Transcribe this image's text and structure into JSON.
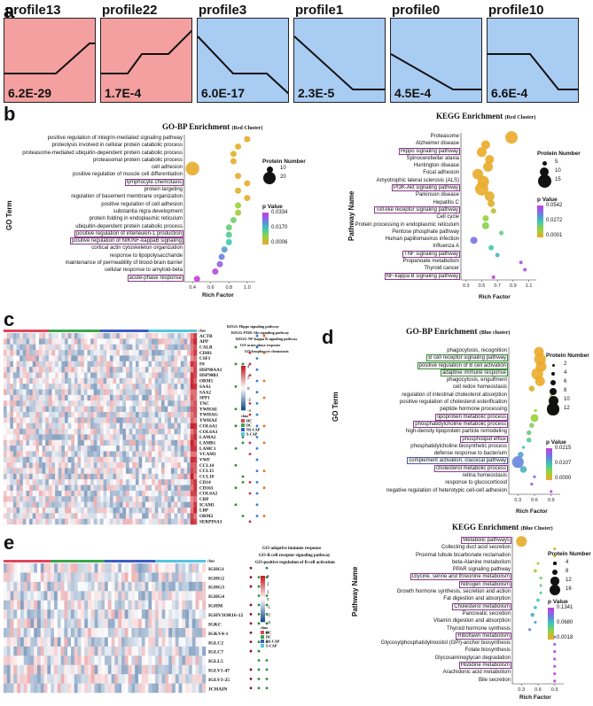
{
  "panel_labels": {
    "a": "a",
    "b": "b",
    "c": "c",
    "d": "d",
    "e": "e"
  },
  "profiles": [
    {
      "name": "profile13",
      "pvalue": "6.2E-29",
      "color": "#f4a0a0",
      "shape": "rise_late"
    },
    {
      "name": "profile22",
      "pvalue": "1.7E-4",
      "color": "#f4a0a0",
      "shape": "rise_step"
    },
    {
      "name": "profile3",
      "pvalue": "6.0E-17",
      "color": "#a9ccf2",
      "shape": "fall_step"
    },
    {
      "name": "profile1",
      "pvalue": "2.3E-5",
      "color": "#a9ccf2",
      "shape": "fall_flat"
    },
    {
      "name": "profile0",
      "pvalue": "4.5E-4",
      "color": "#a9ccf2",
      "shape": "fall_flat2"
    },
    {
      "name": "profile10",
      "pvalue": "6.6E-4",
      "color": "#a9ccf2",
      "shape": "flat_fall"
    }
  ],
  "chart_data": [
    {
      "type": "scatter",
      "title": "GO-BP Enrichment",
      "title_suffix": "(Red Cluster)",
      "xlabel": "Rich Factor",
      "ylabel": "GO Term",
      "xticks": [
        "0.4",
        "0.6",
        "0.8",
        "1.0"
      ],
      "xlim": [
        0.35,
        1.05
      ],
      "categories": [
        "positive regulation of integrin-mediated signaling pathway",
        "proteolysis involved in cellular protein catabolic process",
        "proteasome-mediated ubiquitin-dependent protein catabolic process",
        "proteasomal protein catabolic process",
        "cell adhesion",
        "positive regulation of muscle cell differentiation",
        "lymphocyte chemotaxis",
        "protein targeting",
        "regulation of basement membrane organization",
        "positive regulation of cell adhesion",
        "substantia nigra development",
        "protein folding in endoplasmic reticulum",
        "ubiquitin-dependent protein catabolic process",
        "positive regulation of interleukin-1 production",
        "positive regulation of NIK/NF-kappaB signaling",
        "cortical actin cytoskeleton organization",
        "response to lipopolysaccharide",
        "maintenance of permeability of blood-brain barrier",
        "cellular response to amyloid-beta",
        "acute-phase response"
      ],
      "boxed": [
        6,
        13,
        14,
        19
      ],
      "x": [
        1.0,
        0.9,
        0.85,
        0.85,
        0.4,
        0.9,
        1.0,
        0.9,
        1.0,
        0.9,
        0.9,
        0.85,
        0.8,
        0.8,
        0.8,
        0.75,
        0.72,
        0.7,
        0.65,
        0.45
      ],
      "size": [
        10,
        10,
        10,
        10,
        22,
        10,
        10,
        10,
        10,
        10,
        10,
        10,
        10,
        10,
        10,
        10,
        10,
        10,
        10,
        10
      ],
      "pvalue": [
        0.0009,
        0.0006,
        0.001,
        0.001,
        0.0006,
        0.0007,
        0.0006,
        0.001,
        0.0012,
        0.012,
        0.01,
        0.015,
        0.016,
        0.018,
        0.02,
        0.025,
        0.028,
        0.031,
        0.033,
        0.034
      ],
      "legend": {
        "size_title": "Protein Number",
        "sizes": [
          "10",
          "20"
        ],
        "p_title": "p Value",
        "p_ticks": [
          "0.0334",
          "0.0170",
          "0.0006"
        ]
      }
    },
    {
      "type": "scatter",
      "title": "KEGG Enrichment",
      "title_suffix": "(Red Cluster)",
      "xlabel": "Rich Factor",
      "ylabel": "Pathway Name",
      "xticks": [
        "0.3",
        "0.5",
        "0.7",
        "0.9",
        "1.1"
      ],
      "xlim": [
        0.28,
        1.15
      ],
      "categories": [
        "Proteasome",
        "Alzheimer disease",
        "Hippo signaling pathway",
        "Spinocerebellar ataxia",
        "Huntington disease",
        "Focal adhesion",
        "Amyotrophic lateral sclerosis (ALS)",
        "PI3K-Akt signaling pathway",
        "Parkinson disease",
        "Hepatitis C",
        "Toll-like receptor signaling pathway",
        "Cell cycle",
        "Protein processing in endoplasmic reticulum",
        "Pentose phosphate pathway",
        "Human papillomavirus infection",
        "Influenza A",
        "TNF signaling pathway",
        "Propanoate metabolism",
        "Thyroid cancer",
        "NF-kappa B signaling pathway"
      ],
      "boxed": [
        2,
        7,
        10,
        16,
        19
      ],
      "x": [
        0.88,
        0.55,
        0.5,
        0.6,
        0.58,
        0.45,
        0.52,
        0.5,
        0.6,
        0.62,
        0.65,
        0.55,
        0.55,
        0.75,
        0.4,
        0.62,
        0.7,
        1.0,
        1.05,
        0.65
      ],
      "size": [
        14,
        10,
        11,
        10,
        11,
        12,
        13,
        15,
        11,
        8,
        6,
        7,
        8,
        5,
        8,
        6,
        5,
        4,
        4,
        4
      ],
      "pvalue": [
        0.0001,
        0.0002,
        0.0003,
        0.0005,
        0.0006,
        0.0004,
        0.0005,
        0.0003,
        0.001,
        0.004,
        0.01,
        0.018,
        0.02,
        0.025,
        0.045,
        0.03,
        0.035,
        0.048,
        0.05,
        0.052
      ],
      "legend": {
        "size_title": "Protein Number",
        "sizes": [
          "5",
          "10",
          "15"
        ],
        "p_title": "p Value",
        "p_ticks": [
          "0.0542",
          "0.0272",
          "0.0001"
        ]
      }
    },
    {
      "type": "scatter",
      "title": "GO-BP Enrichment",
      "title_suffix": "(Blue cluster)",
      "xlabel": "Rich Factor",
      "ylabel": "GO Term",
      "xticks": [
        "0.3",
        "0.6",
        "0.9"
      ],
      "xlim": [
        0.2,
        1.0
      ],
      "categories": [
        "phagocytosis, recognition",
        "B cell receptor signaling pathway",
        "positive regulation of B cell activation",
        "adaptive immune response",
        "phagocytosis, engulfment",
        "cell redox homeostasis",
        "regulation of intestinal cholesterol absorption",
        "positive regulation of cholesterol esterification",
        "peptide hormone processing",
        "lipoprotein metabolic process",
        "phosphatidylcholine metabolic process",
        "high-density lipoprotein particle remodeling",
        "phospholipid efflux",
        "phosphatidylcholine biosynthetic process",
        "defense response to bacterium",
        "complement activation, classical pathway",
        "cholesterol metabolic process",
        "retina homeostasis",
        "response to glucocorticoid",
        "negative regulation of heterotypic cell-cell adhesion"
      ],
      "boxed_green": [
        1,
        2,
        3
      ],
      "boxed_purple": [
        9,
        10,
        12,
        16
      ],
      "boxed_blue": [
        15
      ],
      "x": [
        0.68,
        0.7,
        0.72,
        0.65,
        0.7,
        0.55,
        0.9,
        0.88,
        0.62,
        0.6,
        0.55,
        0.5,
        0.5,
        0.4,
        0.35,
        0.3,
        0.4,
        0.6,
        0.55,
        0.9
      ],
      "size": [
        10,
        12,
        11,
        12,
        10,
        6,
        2,
        2,
        3,
        8,
        5,
        5,
        5,
        3,
        6,
        12,
        7,
        3,
        3,
        2
      ],
      "pvalue": [
        0.0,
        0.0,
        0.0,
        0.0001,
        0.0,
        0.002,
        0.004,
        0.005,
        0.006,
        0.007,
        0.009,
        0.01,
        0.011,
        0.013,
        0.015,
        0.017,
        0.014,
        0.018,
        0.019,
        0.021
      ],
      "legend": {
        "size_title": "Protein Number",
        "sizes": [
          "2",
          "4",
          "6",
          "8",
          "10",
          "12"
        ],
        "p_title": "p Value",
        "p_ticks": [
          "0.0215",
          "0.0107",
          "0.0000"
        ]
      }
    },
    {
      "type": "scatter",
      "title": "KEGG Enrichment",
      "title_suffix": "(Blue Cluster)",
      "xlabel": "Rich Factor",
      "ylabel": "Pathway Name",
      "xticks": [
        "0.3",
        "0.6",
        "0.9"
      ],
      "xlim": [
        0.2,
        1.0
      ],
      "categories": [
        "Metabolic pathways",
        "Collecting duct acid secretion",
        "Proximal tubule bicarbonate reclamation",
        "beta-Alanine metabolism",
        "PPAR signaling pathway",
        "Glycine, serine and threonine metabolism",
        "Nitrogen metabolism",
        "Growth hormone synthesis, secretion and action",
        "Fat digestion and absorption",
        "Cholesterol metabolism",
        "Pancreatic secretion",
        "Vitamin digestion and absorption",
        "Thyroid hormone synthesis",
        "Riboflavin metabolism",
        "Glycosylphosphatidylinositol (GPI)-anchor biosynthesis",
        "Folate biosynthesis",
        "Glycosaminoglycan degradation",
        "Histidine metabolism",
        "Arachidonic acid metabolism",
        "Bile secretion"
      ],
      "boxed": [
        0,
        5,
        6,
        9,
        13,
        17
      ],
      "x": [
        0.3,
        0.9,
        0.9,
        0.6,
        0.55,
        0.65,
        0.65,
        0.65,
        0.6,
        0.55,
        0.5,
        0.55,
        0.45,
        0.9,
        0.9,
        0.9,
        0.9,
        0.9,
        0.9,
        0.9
      ],
      "size": [
        16,
        4,
        4,
        4,
        5,
        4,
        4,
        4,
        5,
        5,
        6,
        4,
        4,
        4,
        4,
        4,
        4,
        4,
        4,
        4
      ],
      "pvalue": [
        0.002,
        0.02,
        0.025,
        0.04,
        0.05,
        0.06,
        0.065,
        0.07,
        0.08,
        0.085,
        0.09,
        0.1,
        0.11,
        0.12,
        0.125,
        0.13,
        0.13,
        0.13,
        0.134,
        0.134
      ],
      "legend": {
        "size_title": "Protein Number",
        "sizes": [
          "4",
          "8",
          "12",
          "16"
        ],
        "p_title": "p Value",
        "p_ticks": [
          "0.1341",
          "0.0680",
          "0.0018"
        ]
      }
    }
  ],
  "heatmap_c": {
    "genes": [
      "ACTB",
      "APP",
      "CALR",
      "CDH1",
      "CSF1",
      "F8",
      "HSP90AA1",
      "HSP90B1",
      "ORM1",
      "SAA1",
      "SAA2",
      "SPP1",
      "TNC",
      "YWHAE",
      "YWHAG",
      "YWHAZ",
      "COL6A1",
      "COL6A3",
      "LAMA2",
      "LAMB1",
      "LAMC1",
      "VCAM1",
      "VWF",
      "CCL14",
      "CCL15",
      "CCL18",
      "CD14",
      "CD163",
      "COL6A2",
      "CRP",
      "ICAM1",
      "LBP",
      "ORM2",
      "SERPINA3"
    ],
    "pathways": [
      "KEGG-Hippo signaling pathway",
      "KEGG-PI3K-Akt signaling pathway",
      "KEGG-NF-kappa B signaling pathway",
      "GO-acute phase response",
      "GO-lymphocyte chemotaxis"
    ],
    "class_label": "class",
    "classes": [
      "HC",
      "DC",
      "NS-CAP",
      "S-CAP"
    ],
    "scale_ticks": [
      "4",
      "2",
      "0",
      "-2",
      "-4"
    ]
  },
  "heatmap_e": {
    "genes": [
      "IGHG1",
      "IGHG2",
      "IGHG3",
      "IGHG4",
      "IGHM",
      "IGHV3OR16-12",
      "IGKC",
      "IGKV4-1",
      "IGLC2",
      "IGLC7",
      "IGLL5",
      "IGLV1-47",
      "IGLV3-25",
      "JCHAIN"
    ],
    "pathways": [
      "GO-adaptive immune response",
      "GO-B cell receptor signaling pathway",
      "GO-positive regulation of B cell activation"
    ],
    "class_label": "class",
    "classes": [
      "HC",
      "DC",
      "NS-CAP",
      "S-CAP"
    ],
    "scale_ticks": [
      "3",
      "2",
      "1",
      "0",
      "-1",
      "-2",
      "-3"
    ]
  },
  "colors": {
    "red_cluster": "#f4a0a0",
    "blue_cluster": "#a9ccf2",
    "HC": "#e2455b",
    "DC": "#3aa54a",
    "NS-CAP": "#3b5cc4",
    "S-CAP": "#55c4e0",
    "box_purple": "#8a3a8a"
  }
}
